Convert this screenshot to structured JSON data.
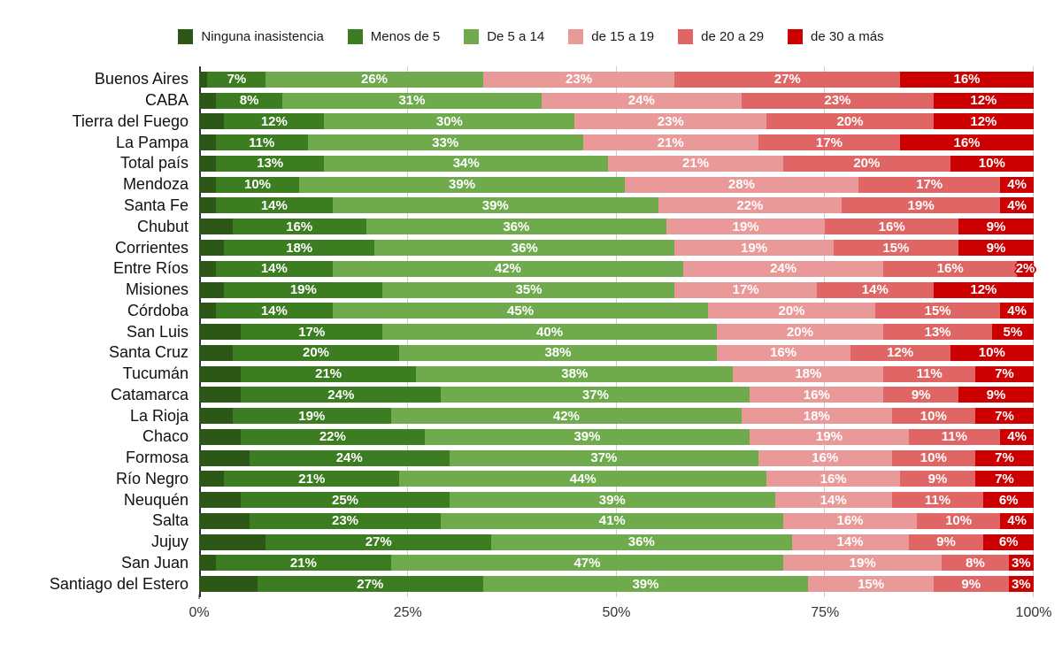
{
  "chart_data": {
    "type": "bar",
    "orientation": "horizontal",
    "stacked": true,
    "unit": "%",
    "xlim": [
      0,
      100
    ],
    "x_ticks": [
      "0%",
      "25%",
      "50%",
      "75%",
      "100%"
    ],
    "grid": true,
    "legend_position": "top",
    "value_labels_shown_from_series_index": 1,
    "categories": [
      {
        "label": "Ninguna inasistencia",
        "color": "#2d5716"
      },
      {
        "label": "Menos de 5",
        "color": "#3c7d21"
      },
      {
        "label": "De 5 a 14",
        "color": "#6fab4d"
      },
      {
        "label": "de 15 a 19",
        "color": "#ea9999"
      },
      {
        "label": "de 20 a 29",
        "color": "#e06666"
      },
      {
        "label": "de 30 a más",
        "color": "#cc0000"
      }
    ],
    "rows": [
      {
        "label": "Buenos Aires",
        "values": [
          1,
          7,
          26,
          23,
          27,
          16
        ]
      },
      {
        "label": "CABA",
        "values": [
          2,
          8,
          31,
          24,
          23,
          12
        ]
      },
      {
        "label": "Tierra del Fuego",
        "values": [
          3,
          12,
          30,
          23,
          20,
          12
        ]
      },
      {
        "label": "La Pampa",
        "values": [
          2,
          11,
          33,
          21,
          17,
          16
        ]
      },
      {
        "label": "Total país",
        "values": [
          2,
          13,
          34,
          21,
          20,
          10
        ]
      },
      {
        "label": "Mendoza",
        "values": [
          2,
          10,
          39,
          28,
          17,
          4
        ]
      },
      {
        "label": "Santa Fe",
        "values": [
          2,
          14,
          39,
          22,
          19,
          4
        ]
      },
      {
        "label": "Chubut",
        "values": [
          4,
          16,
          36,
          19,
          16,
          9
        ]
      },
      {
        "label": "Corrientes",
        "values": [
          3,
          18,
          36,
          19,
          15,
          9
        ]
      },
      {
        "label": "Entre Ríos",
        "values": [
          2,
          14,
          42,
          24,
          16,
          2
        ]
      },
      {
        "label": "Misiones",
        "values": [
          3,
          19,
          35,
          17,
          14,
          12
        ]
      },
      {
        "label": "Córdoba",
        "values": [
          2,
          14,
          45,
          20,
          15,
          4
        ]
      },
      {
        "label": "San Luis",
        "values": [
          5,
          17,
          40,
          20,
          13,
          5
        ]
      },
      {
        "label": "Santa Cruz",
        "values": [
          4,
          20,
          38,
          16,
          12,
          10
        ]
      },
      {
        "label": "Tucumán",
        "values": [
          5,
          21,
          38,
          18,
          11,
          7
        ]
      },
      {
        "label": "Catamarca",
        "values": [
          5,
          24,
          37,
          16,
          9,
          9
        ]
      },
      {
        "label": "La Rioja",
        "values": [
          4,
          19,
          42,
          18,
          10,
          7
        ]
      },
      {
        "label": "Chaco",
        "values": [
          5,
          22,
          39,
          19,
          11,
          4
        ]
      },
      {
        "label": "Formosa",
        "values": [
          6,
          24,
          37,
          16,
          10,
          7
        ]
      },
      {
        "label": "Río Negro",
        "values": [
          3,
          21,
          44,
          16,
          9,
          7
        ]
      },
      {
        "label": "Neuquén",
        "values": [
          5,
          25,
          39,
          14,
          11,
          6
        ]
      },
      {
        "label": "Salta",
        "values": [
          6,
          23,
          41,
          16,
          10,
          4
        ]
      },
      {
        "label": "Jujuy",
        "values": [
          8,
          27,
          36,
          14,
          9,
          6
        ]
      },
      {
        "label": "San Juan",
        "values": [
          2,
          21,
          47,
          19,
          8,
          3
        ]
      },
      {
        "label": "Santiago del Estero",
        "values": [
          7,
          27,
          39,
          15,
          9,
          3
        ]
      }
    ]
  }
}
